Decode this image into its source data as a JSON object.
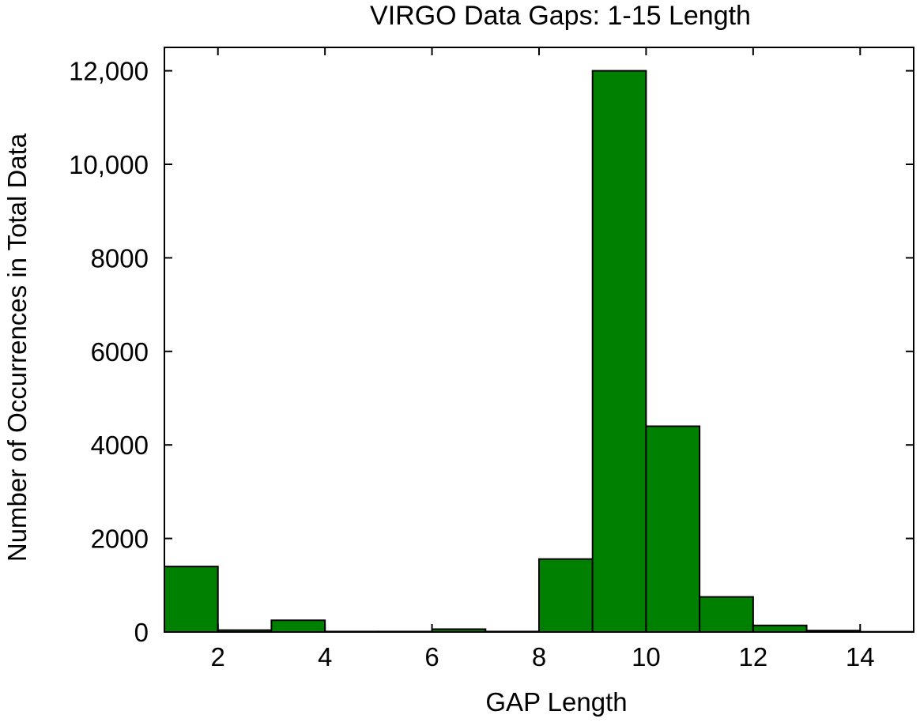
{
  "chart_data": {
    "type": "bar",
    "title": "VIRGO Data Gaps: 1-15 Length",
    "xlabel": "GAP Length",
    "ylabel": "Number of Occurrences in Total Data",
    "xlim": [
      1,
      15
    ],
    "ylim": [
      0,
      12500
    ],
    "grid": false,
    "x_ticks": [
      2,
      4,
      6,
      8,
      10,
      12,
      14
    ],
    "x_tick_labels": [
      "2",
      "4",
      "6",
      "8",
      "10",
      "12",
      "14"
    ],
    "y_ticks": [
      0,
      2000,
      4000,
      6000,
      8000,
      10000,
      12000
    ],
    "y_tick_labels": [
      "0",
      "2000",
      "4000",
      "6000",
      "8000",
      "10,000",
      "12,000"
    ],
    "bar_color": "#008000",
    "bins": [
      {
        "start": 1,
        "end": 2,
        "value": 1400
      },
      {
        "start": 2,
        "end": 3,
        "value": 40
      },
      {
        "start": 3,
        "end": 4,
        "value": 250
      },
      {
        "start": 4,
        "end": 5,
        "value": 10
      },
      {
        "start": 5,
        "end": 6,
        "value": 10
      },
      {
        "start": 6,
        "end": 7,
        "value": 60
      },
      {
        "start": 7,
        "end": 8,
        "value": 10
      },
      {
        "start": 8,
        "end": 9,
        "value": 1560
      },
      {
        "start": 9,
        "end": 10,
        "value": 12000
      },
      {
        "start": 10,
        "end": 11,
        "value": 4400
      },
      {
        "start": 11,
        "end": 12,
        "value": 750
      },
      {
        "start": 12,
        "end": 13,
        "value": 140
      },
      {
        "start": 13,
        "end": 14,
        "value": 30
      },
      {
        "start": 14,
        "end": 15,
        "value": 5
      }
    ]
  }
}
